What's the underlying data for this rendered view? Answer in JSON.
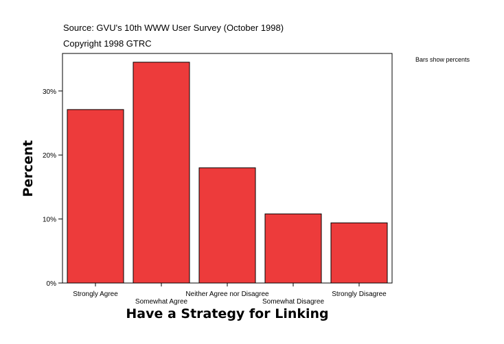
{
  "source_line": "Source: GVU's 10th WWW User Survey (October 1998)",
  "copyright_line": "Copyright 1998 GTRC",
  "bars_note": "Bars show percents",
  "chart_data": {
    "type": "bar",
    "xlabel": "Have a Strategy for Linking",
    "ylabel": "Percent",
    "categories": [
      "Strongly Agree",
      "Somewhat Agree",
      "Neither Agree nor Disagree",
      "Somewhat Disagree",
      "Strongly Disagree"
    ],
    "values": [
      27.1,
      34.5,
      18.0,
      10.8,
      9.4
    ],
    "ylim": [
      0,
      36
    ],
    "yticks": [
      0,
      10,
      20,
      30
    ],
    "ytick_labels": [
      "0%",
      "10%",
      "20%",
      "30%"
    ],
    "grid": false,
    "bar_color": "#ed3b3b",
    "bar_outline_color": "#000000"
  }
}
